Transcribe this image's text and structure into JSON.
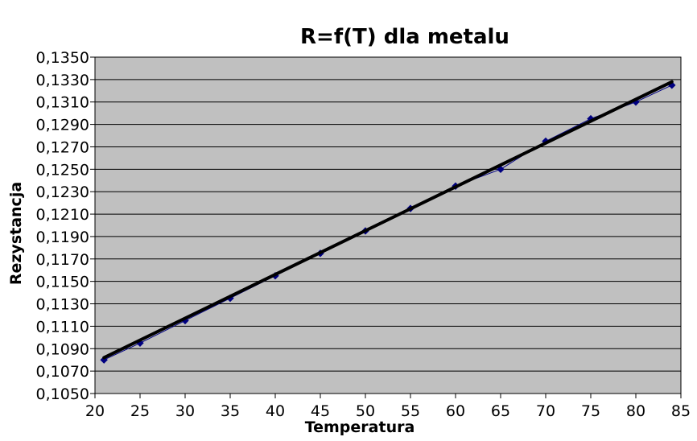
{
  "chart_data": {
    "type": "scatter",
    "title": "R=f(T) dla metalu",
    "xlabel": "Temperatura",
    "ylabel": "Rezystancja",
    "xlim": [
      20,
      85
    ],
    "ylim": [
      0.105,
      0.135
    ],
    "x_ticks": [
      "20",
      "25",
      "30",
      "35",
      "40",
      "45",
      "50",
      "55",
      "60",
      "65",
      "70",
      "75",
      "80",
      "85"
    ],
    "y_ticks": [
      "0,1050",
      "0,1070",
      "0,1090",
      "0,1110",
      "0,1130",
      "0,1150",
      "0,1170",
      "0,1190",
      "0,1210",
      "0,1230",
      "0,1250",
      "0,1270",
      "0,1290",
      "0,1310",
      "0,1330",
      "0,1350"
    ],
    "grid": true,
    "plot_background": "#c0c0c0",
    "series": [
      {
        "points": [
          [
            21,
            0.108
          ],
          [
            25,
            0.1095
          ],
          [
            30,
            0.1115
          ],
          [
            35,
            0.1135
          ],
          [
            40,
            0.1155
          ],
          [
            45,
            0.1175
          ],
          [
            50,
            0.1195
          ],
          [
            55,
            0.1215
          ],
          [
            60,
            0.1235
          ],
          [
            65,
            0.125
          ],
          [
            70,
            0.1275
          ],
          [
            75,
            0.1295
          ],
          [
            80,
            0.131
          ],
          [
            84,
            0.1325
          ]
        ],
        "color": "#000080",
        "marker": "diamond"
      }
    ],
    "trendline": {
      "type": "linear",
      "from": [
        21,
        0.1082
      ],
      "to": [
        84,
        0.1328
      ],
      "color": "#000000"
    }
  }
}
